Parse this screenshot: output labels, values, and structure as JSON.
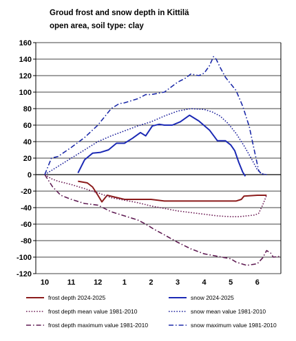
{
  "chart_data": {
    "type": "line",
    "title": [
      "Groud frost and snow depth in Kittilä",
      "open area, soil type: clay"
    ],
    "xlabel": "",
    "ylabel": "",
    "ylim": [
      -120,
      160
    ],
    "yticks": [
      160,
      140,
      120,
      100,
      80,
      60,
      40,
      20,
      0,
      -20,
      -40,
      -60,
      -80,
      -100,
      -120
    ],
    "xlim": [
      0,
      8.5
    ],
    "xticks": [
      {
        "label": "10",
        "x": 0
      },
      {
        "label": "11",
        "x": 1
      },
      {
        "label": "12",
        "x": 2
      },
      {
        "label": "1",
        "x": 3
      },
      {
        "label": "2",
        "x": 4
      },
      {
        "label": "3",
        "x": 5
      },
      {
        "label": "4",
        "x": 6
      },
      {
        "label": "5",
        "x": 7
      },
      {
        "label": "6",
        "x": 8
      }
    ],
    "grid": "horizontal",
    "legend_position": "bottom",
    "series": [
      {
        "name": "frost depth 2024-2025",
        "color": "#8b1a1a",
        "style": "solid",
        "width": 2,
        "points": [
          [
            1.25,
            -8
          ],
          [
            1.6,
            -10
          ],
          [
            1.8,
            -15
          ],
          [
            2.0,
            -25
          ],
          [
            2.15,
            -33
          ],
          [
            2.35,
            -25
          ],
          [
            2.6,
            -27
          ],
          [
            3.0,
            -30
          ],
          [
            3.5,
            -30
          ],
          [
            4.0,
            -30
          ],
          [
            4.5,
            -32
          ],
          [
            5.0,
            -32
          ],
          [
            5.5,
            -32
          ],
          [
            6.0,
            -32
          ],
          [
            6.5,
            -32
          ],
          [
            7.0,
            -32
          ],
          [
            7.2,
            -32
          ],
          [
            7.4,
            -30
          ],
          [
            7.5,
            -26
          ],
          [
            8.0,
            -25
          ],
          [
            8.35,
            -25
          ]
        ]
      },
      {
        "name": "snow 2024-2025",
        "color": "#1a28b4",
        "style": "solid",
        "width": 2,
        "points": [
          [
            1.25,
            2
          ],
          [
            1.5,
            18
          ],
          [
            1.8,
            26
          ],
          [
            2.1,
            27
          ],
          [
            2.4,
            30
          ],
          [
            2.7,
            38
          ],
          [
            3.0,
            38
          ],
          [
            3.3,
            44
          ],
          [
            3.6,
            51
          ],
          [
            3.8,
            47
          ],
          [
            4.05,
            59
          ],
          [
            4.3,
            61
          ],
          [
            4.5,
            60
          ],
          [
            4.8,
            60
          ],
          [
            5.1,
            64
          ],
          [
            5.45,
            72
          ],
          [
            5.8,
            65
          ],
          [
            6.2,
            54
          ],
          [
            6.5,
            41
          ],
          [
            6.8,
            41
          ],
          [
            7.0,
            36
          ],
          [
            7.15,
            29
          ],
          [
            7.3,
            15
          ],
          [
            7.45,
            3
          ],
          [
            7.55,
            -2
          ]
        ]
      },
      {
        "name": "frost depth mean value 1981-2010",
        "color": "#6e1e56",
        "style": "dotted",
        "width": 1.6,
        "points": [
          [
            0,
            0
          ],
          [
            0.25,
            -5
          ],
          [
            0.5,
            -8
          ],
          [
            1.0,
            -12
          ],
          [
            1.5,
            -17
          ],
          [
            2.0,
            -22
          ],
          [
            2.5,
            -28
          ],
          [
            3.0,
            -31
          ],
          [
            3.5,
            -34
          ],
          [
            4.0,
            -38
          ],
          [
            4.5,
            -41
          ],
          [
            5.0,
            -44
          ],
          [
            5.5,
            -46
          ],
          [
            6.0,
            -48
          ],
          [
            6.5,
            -50
          ],
          [
            7.0,
            -51
          ],
          [
            7.3,
            -51
          ],
          [
            7.6,
            -50
          ],
          [
            7.9,
            -49
          ],
          [
            8.05,
            -47
          ],
          [
            8.2,
            -37
          ],
          [
            8.35,
            -25
          ]
        ]
      },
      {
        "name": "snow mean value 1981-2010",
        "color": "#1a1e9b",
        "style": "dotted",
        "width": 1.6,
        "points": [
          [
            0,
            0
          ],
          [
            0.25,
            5
          ],
          [
            0.5,
            10
          ],
          [
            1.0,
            20
          ],
          [
            1.5,
            30
          ],
          [
            2.0,
            40
          ],
          [
            2.5,
            47
          ],
          [
            3.0,
            53
          ],
          [
            3.5,
            59
          ],
          [
            4.0,
            64
          ],
          [
            4.5,
            71
          ],
          [
            5.0,
            77
          ],
          [
            5.5,
            80
          ],
          [
            6.0,
            79
          ],
          [
            6.3,
            76
          ],
          [
            6.6,
            71
          ],
          [
            6.9,
            62
          ],
          [
            7.2,
            50
          ],
          [
            7.5,
            35
          ],
          [
            7.8,
            18
          ],
          [
            8.0,
            6
          ],
          [
            8.15,
            1
          ],
          [
            8.35,
            0
          ]
        ]
      },
      {
        "name": "frost depth maximum value 1981-2010",
        "color": "#5e1a52",
        "style": "dashdot",
        "width": 1.6,
        "points": [
          [
            0,
            0
          ],
          [
            0.3,
            -15
          ],
          [
            0.6,
            -25
          ],
          [
            1.0,
            -30
          ],
          [
            1.5,
            -35
          ],
          [
            2.0,
            -37
          ],
          [
            2.5,
            -45
          ],
          [
            3.0,
            -50
          ],
          [
            3.5,
            -55
          ],
          [
            3.8,
            -60
          ],
          [
            4.1,
            -66
          ],
          [
            4.5,
            -73
          ],
          [
            5.0,
            -82
          ],
          [
            5.5,
            -90
          ],
          [
            6.0,
            -96
          ],
          [
            6.5,
            -99
          ],
          [
            7.0,
            -102
          ],
          [
            7.2,
            -106
          ],
          [
            7.6,
            -110
          ],
          [
            8.0,
            -108
          ],
          [
            8.2,
            -101
          ],
          [
            8.35,
            -92
          ],
          [
            8.5,
            -95
          ],
          [
            8.6,
            -100
          ],
          [
            8.9,
            -99
          ]
        ]
      },
      {
        "name": "snow maximum value 1981-2010",
        "color": "#1a28a8",
        "style": "dashdot",
        "width": 1.6,
        "points": [
          [
            0,
            0
          ],
          [
            0.25,
            20
          ],
          [
            0.5,
            22
          ],
          [
            1.0,
            33
          ],
          [
            1.5,
            45
          ],
          [
            2.0,
            60
          ],
          [
            2.5,
            80
          ],
          [
            2.8,
            86
          ],
          [
            3.0,
            87
          ],
          [
            3.5,
            92
          ],
          [
            3.8,
            97
          ],
          [
            4.0,
            97
          ],
          [
            4.5,
            100
          ],
          [
            5.0,
            112
          ],
          [
            5.3,
            117
          ],
          [
            5.5,
            122
          ],
          [
            5.8,
            120
          ],
          [
            6.0,
            123
          ],
          [
            6.2,
            132
          ],
          [
            6.35,
            143
          ],
          [
            6.45,
            140
          ],
          [
            6.6,
            130
          ],
          [
            6.8,
            118
          ],
          [
            7.0,
            110
          ],
          [
            7.2,
            102
          ],
          [
            7.45,
            83
          ],
          [
            7.7,
            58
          ],
          [
            7.85,
            35
          ],
          [
            7.95,
            20
          ],
          [
            8.05,
            5
          ],
          [
            8.15,
            1
          ],
          [
            8.35,
            0
          ]
        ]
      }
    ]
  }
}
